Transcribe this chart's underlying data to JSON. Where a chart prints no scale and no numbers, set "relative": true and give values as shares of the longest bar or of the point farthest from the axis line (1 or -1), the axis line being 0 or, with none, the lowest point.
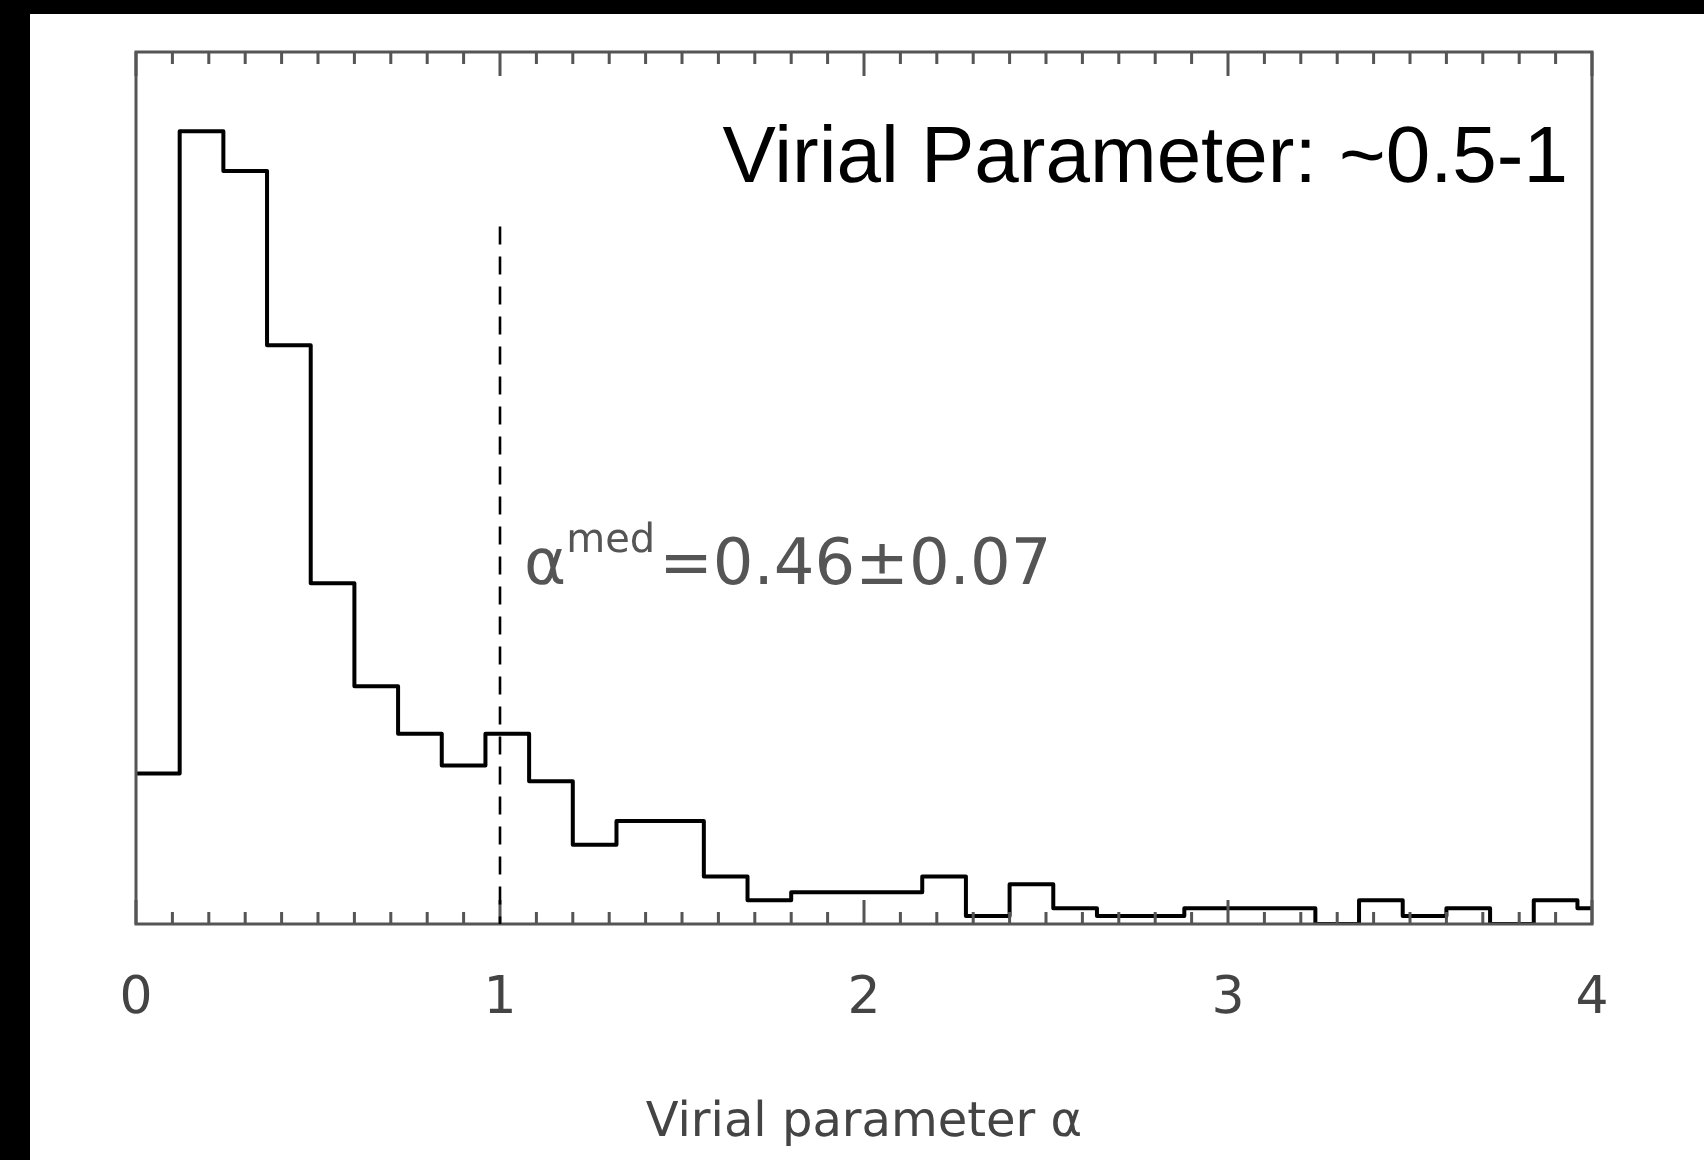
{
  "chart_data": {
    "type": "step",
    "title": "Virial Parameter: ~0.5-1",
    "xlabel": "Virial parameter α",
    "relative": true,
    "color": "#000000",
    "x": [
      0,
      0.12,
      0.24,
      0.36,
      0.48,
      0.6,
      0.72,
      0.84,
      0.96,
      1.08,
      1.2,
      1.32,
      1.44,
      1.56,
      1.68,
      1.8,
      1.92,
      2.04,
      2.16,
      2.28,
      2.4,
      2.52,
      2.64,
      2.76,
      2.88,
      3.0,
      3.12,
      3.24,
      3.36,
      3.48,
      3.6,
      3.72,
      3.84,
      3.96,
      4.0
    ],
    "values": [
      0.19,
      1,
      0.95,
      0.73,
      0.43,
      0.3,
      0.24,
      0.2,
      0.24,
      0.18,
      0.1,
      0.13,
      0.13,
      0.06,
      0.03,
      0.04,
      0.04,
      0.04,
      0.06,
      0.01,
      0.05,
      0.02,
      0.01,
      0.01,
      0.02,
      0.02,
      0.02,
      0,
      0.03,
      0.01,
      0.02,
      0,
      0.03,
      0.02,
      0.02
    ],
    "xlim": [
      0,
      4
    ],
    "xticks": [
      0,
      {
        "value": 0.1,
        "label": null
      },
      {
        "value": 0.2,
        "label": null
      },
      {
        "value": 0.3,
        "label": null
      },
      {
        "value": 0.4,
        "label": null
      },
      {
        "value": 0.5,
        "label": null
      },
      {
        "value": 0.6,
        "label": null
      },
      {
        "value": 0.7,
        "label": null
      },
      {
        "value": 0.8,
        "label": null
      },
      {
        "value": 0.9,
        "label": null
      },
      1,
      {
        "value": 1.1,
        "label": null
      },
      {
        "value": 1.2,
        "label": null
      },
      {
        "value": 1.3,
        "label": null
      },
      {
        "value": 1.4,
        "label": null
      },
      {
        "value": 1.5,
        "label": null
      },
      {
        "value": 1.6,
        "label": null
      },
      {
        "value": 1.7,
        "label": null
      },
      {
        "value": 1.8,
        "label": null
      },
      {
        "value": 1.9,
        "label": null
      },
      2,
      {
        "value": 2.1,
        "label": null
      },
      {
        "value": 2.2,
        "label": null
      },
      {
        "value": 2.3,
        "label": null
      },
      {
        "value": 2.4,
        "label": null
      },
      {
        "value": 2.5,
        "label": null
      },
      {
        "value": 2.6,
        "label": null
      },
      {
        "value": 2.7,
        "label": null
      },
      {
        "value": 2.8,
        "label": null
      },
      {
        "value": 2.9,
        "label": null
      },
      3,
      {
        "value": 3.1,
        "label": null
      },
      {
        "value": 3.2,
        "label": null
      },
      {
        "value": 3.3,
        "label": null
      },
      {
        "value": 3.4,
        "label": null
      },
      {
        "value": 3.5,
        "label": null
      },
      {
        "value": 3.6,
        "label": null
      },
      {
        "value": 3.7,
        "label": null
      },
      {
        "value": 3.8,
        "label": null
      },
      {
        "value": 3.9,
        "label": null
      },
      4
    ],
    "ref_lines": [
      {
        "axis": "x",
        "value": 1,
        "line_style": "dashed"
      }
    ],
    "annotations": [
      "α$^{med}$=0.46±0.07"
    ]
  }
}
